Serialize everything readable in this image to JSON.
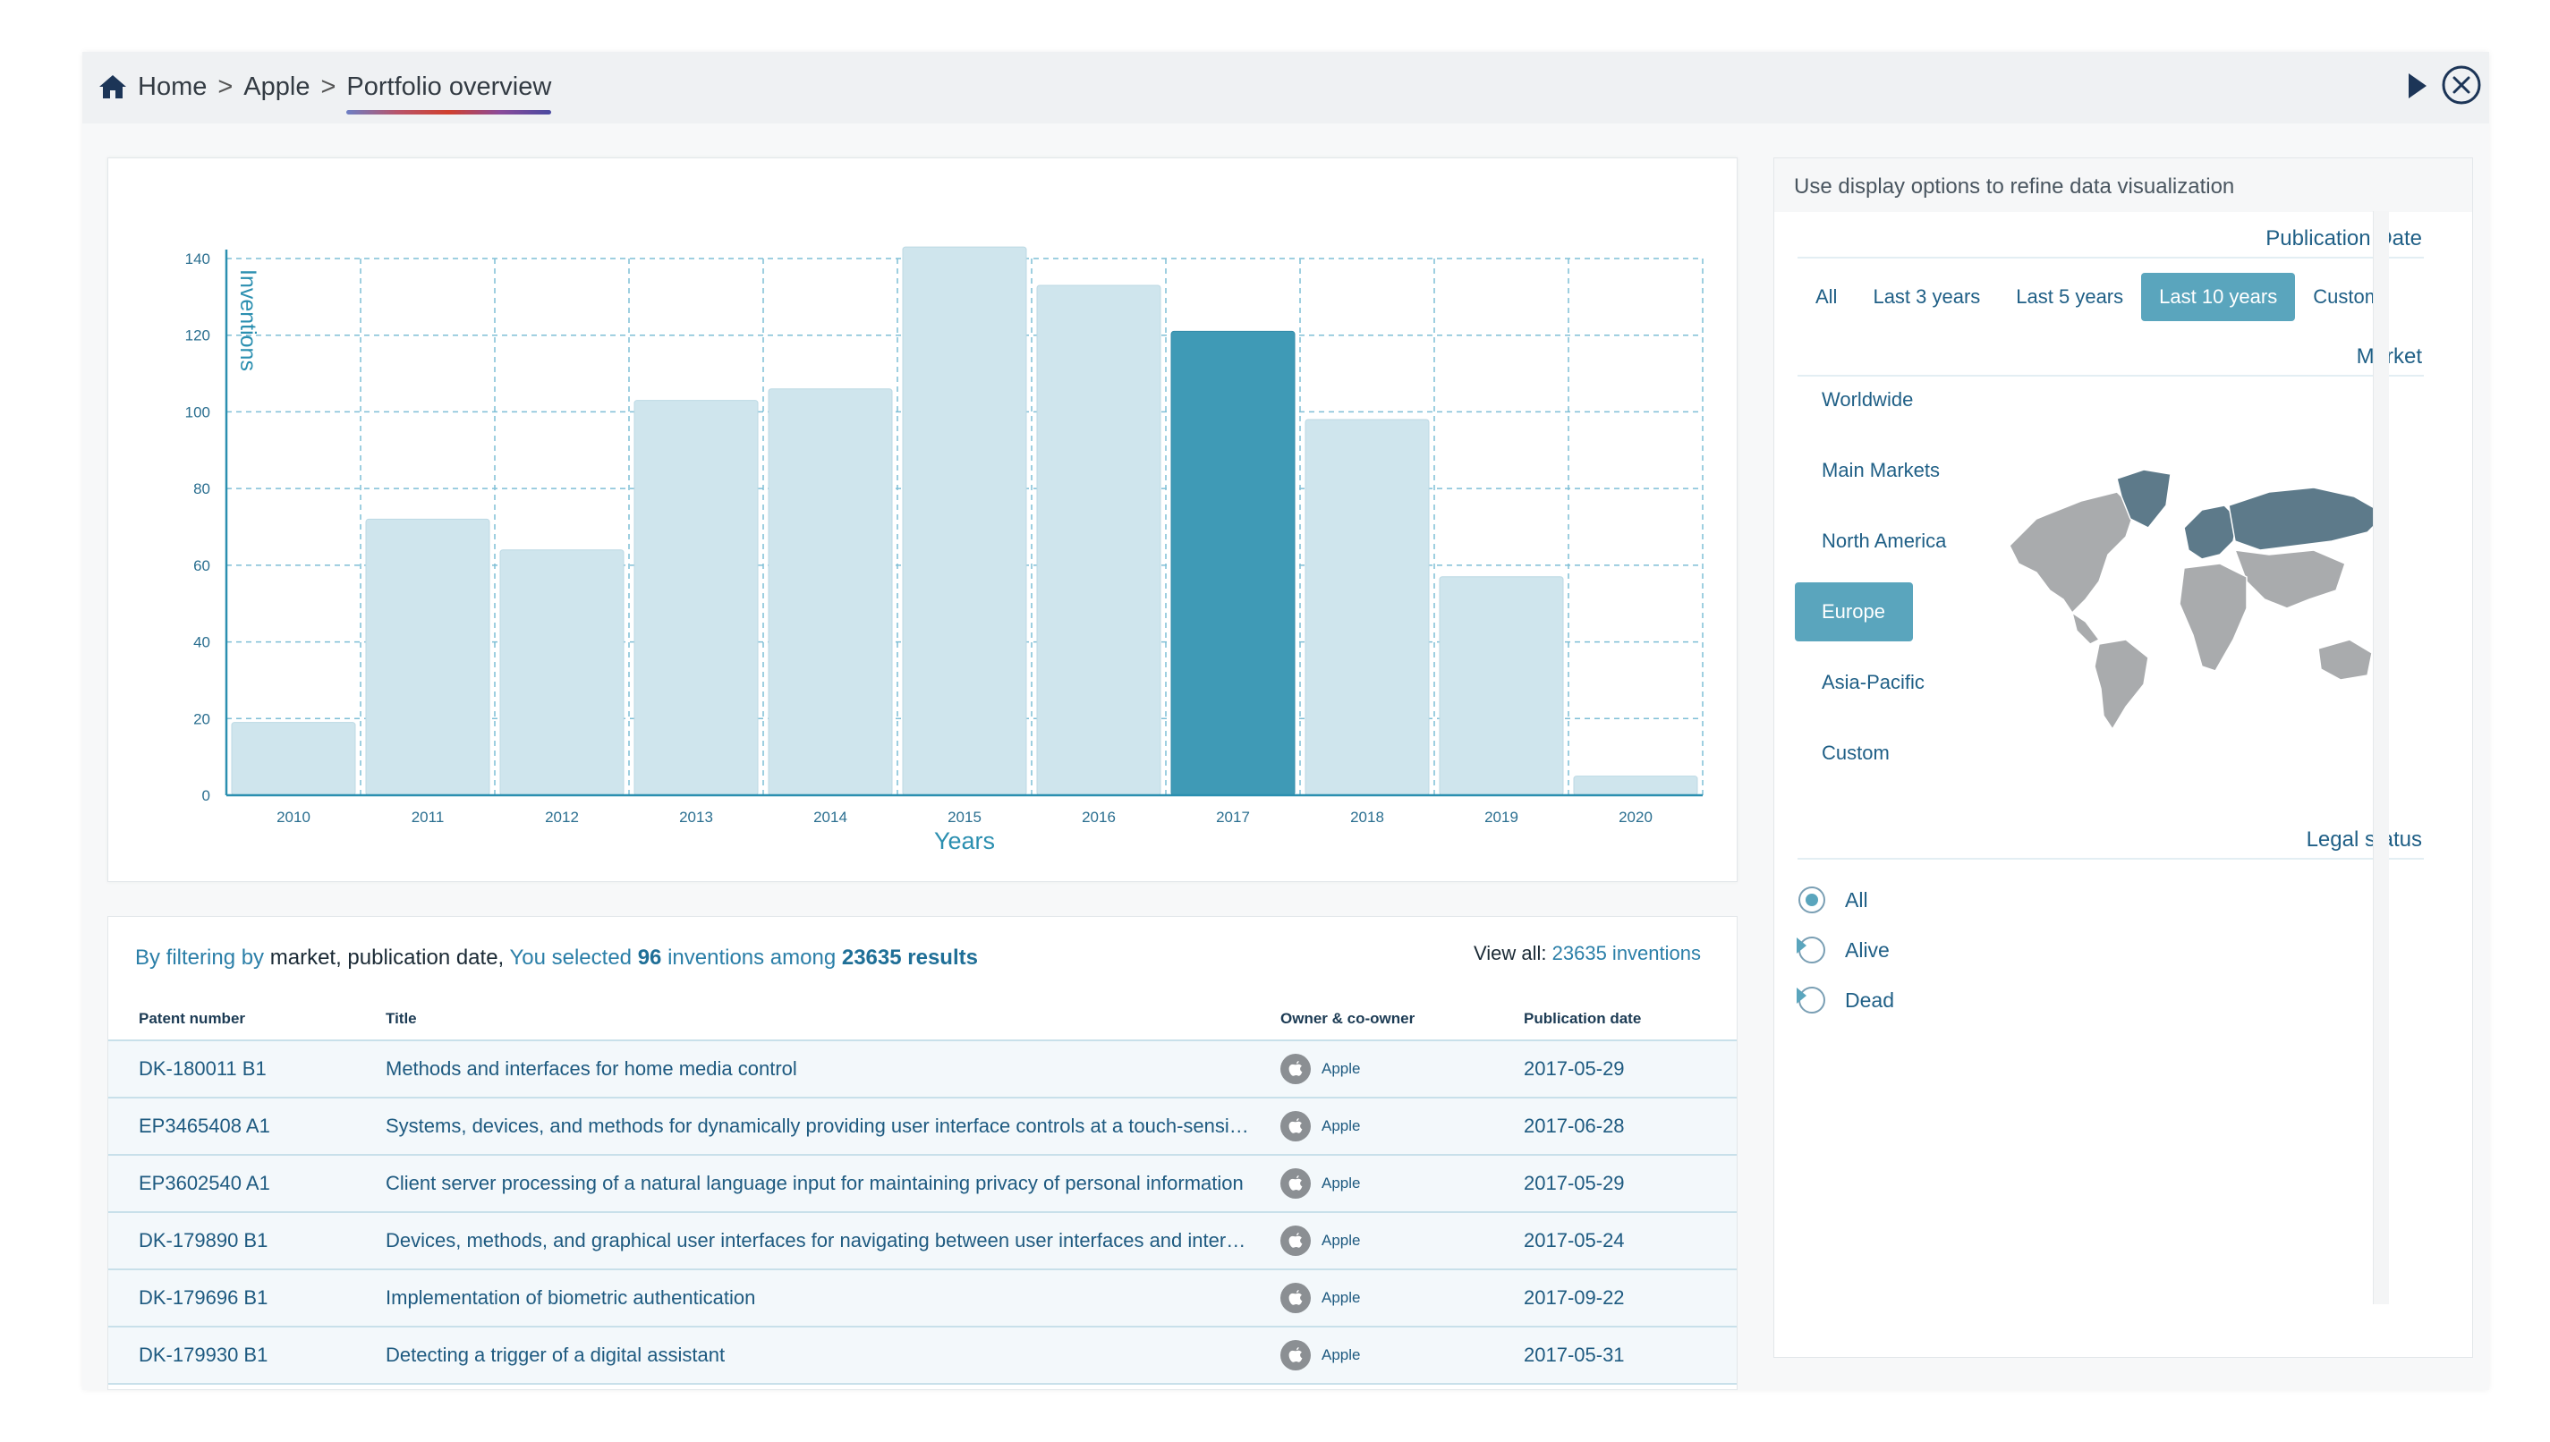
{
  "breadcrumb": {
    "home": "Home",
    "sep1": ">",
    "company": "Apple",
    "sep2": ">",
    "current": "Portfolio overview"
  },
  "chart_data": {
    "type": "bar",
    "categories": [
      "2010",
      "2011",
      "2012",
      "2013",
      "2014",
      "2015",
      "2016",
      "2017",
      "2018",
      "2019",
      "2020"
    ],
    "values": [
      19,
      72,
      64,
      103,
      106,
      143,
      133,
      121,
      98,
      57,
      5
    ],
    "highlight": "2017",
    "xlabel": "Years",
    "ylabel": "Inventions",
    "ylim": [
      0,
      140
    ],
    "yticks": [
      0,
      20,
      40,
      60,
      80,
      100,
      120,
      140
    ],
    "grid": true,
    "colors": {
      "bar": "#cfe5ed",
      "highlight": "#3f9ab6",
      "axis": "#2b8fb0"
    }
  },
  "summary": {
    "prefix": "By filtering by",
    "filters": "market, publication date,",
    "mid": "You selected",
    "count": "96",
    "mid2": "inventions among",
    "total": "23635 results"
  },
  "view_all": {
    "label": "View all:",
    "value": "23635 inventions"
  },
  "table": {
    "headers": [
      "Patent number",
      "Title",
      "Owner & co-owner",
      "Publication date"
    ],
    "rows": [
      {
        "number": "DK-180011 B1",
        "title": "Methods and interfaces for home media control",
        "owner": "Apple",
        "date": "2017-05-29"
      },
      {
        "number": "EP3465408 A1",
        "title": "Systems, devices, and methods for dynamically providing user interface controls at a touch-sensitive secondary display",
        "owner": "Apple",
        "date": "2017-06-28"
      },
      {
        "number": "EP3602540 A1",
        "title": "Client server processing of a natural language input for maintaining privacy of personal information",
        "owner": "Apple",
        "date": "2017-05-29"
      },
      {
        "number": "DK-179890 B1",
        "title": "Devices, methods, and graphical user interfaces for navigating between user interfaces and interacting with control objects",
        "owner": "Apple",
        "date": "2017-05-24"
      },
      {
        "number": "DK-179696 B1",
        "title": "Implementation of biometric authentication",
        "owner": "Apple",
        "date": "2017-09-22"
      },
      {
        "number": "DK-179930 B1",
        "title": "Detecting a trigger of a digital assistant",
        "owner": "Apple",
        "date": "2017-05-31"
      }
    ]
  },
  "side": {
    "hint": "Use display options to refine data visualization",
    "pub_title": "Publication Date",
    "pub_options": [
      "All",
      "Last 3 years",
      "Last 5 years",
      "Last 10 years",
      "Custom"
    ],
    "pub_selected": "Last 10 years",
    "market_title": "Market",
    "market_options": [
      "Worldwide",
      "Main Markets",
      "North America",
      "Europe",
      "Asia-Pacific",
      "Custom"
    ],
    "market_selected": "Europe",
    "legal_title": "Legal status",
    "legal_options": [
      "All",
      "Alive",
      "Dead"
    ],
    "legal_selected": "All"
  }
}
